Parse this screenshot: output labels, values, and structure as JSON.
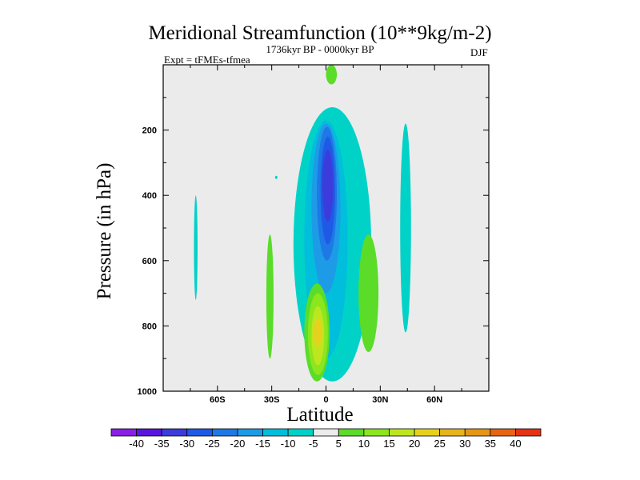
{
  "title": "Meridional Streamfunction (10**9kg/m-2)",
  "subtitle_left": "Expt = tFMEs-tfmea",
  "subtitle_center": "1736kyr BP - 0000kyr BP",
  "subtitle_right": "DJF",
  "chart_data": {
    "type": "contour",
    "title": "Meridional Streamfunction (10**9kg/m-2)",
    "xlabel": "Latitude",
    "ylabel": "Pressure (in hPa)",
    "xlim": [
      -90,
      90
    ],
    "ylim": [
      1000,
      0
    ],
    "x_ticks": [
      -60,
      -30,
      0,
      30,
      60
    ],
    "x_tick_labels": [
      "60S",
      "30S",
      "0",
      "30N",
      "60N"
    ],
    "y_ticks": [
      200,
      400,
      600,
      800,
      1000
    ],
    "y_tick_labels": [
      "200",
      "400",
      "600",
      "800",
      "1000"
    ],
    "colorbar": {
      "levels": [
        -40,
        -35,
        -30,
        -25,
        -20,
        -15,
        -10,
        -5,
        5,
        10,
        15,
        20,
        25,
        30,
        35,
        40
      ],
      "labels": [
        "-40",
        "-35",
        "-30",
        "-25",
        "-20",
        "-15",
        "-10",
        "-5",
        "5",
        "10",
        "15",
        "20",
        "25",
        "30",
        "35",
        "40"
      ],
      "colors": [
        "#8a1ee6",
        "#5a14e0",
        "#3c3cdc",
        "#1e5ae6",
        "#1e78e6",
        "#1e9be6",
        "#00bedc",
        "#00d2c8",
        "#ebebeb",
        "#5adc28",
        "#8ce61e",
        "#bee61e",
        "#e6d21e",
        "#e6b41e",
        "#e69614",
        "#e66414",
        "#e63214"
      ]
    },
    "features": [
      {
        "name": "southern-neg-cell",
        "level": -5,
        "lat": [
          -73,
          -71
        ],
        "p": [
          400,
          720
        ],
        "color": "#00d2c8"
      },
      {
        "name": "small-neg-patch",
        "level": -5,
        "lat": [
          -28,
          -27
        ],
        "p": [
          340,
          350
        ],
        "color": "#00d2c8"
      },
      {
        "name": "main-neg-outer",
        "level": -5,
        "lat": [
          -18,
          25
        ],
        "p": [
          130,
          970
        ],
        "color": "#00d2c8"
      },
      {
        "name": "main-neg-10",
        "level": -10,
        "lat": [
          -12,
          12
        ],
        "p": [
          170,
          900
        ],
        "color": "#00bedc"
      },
      {
        "name": "main-neg-15",
        "level": -15,
        "lat": [
          -8,
          8
        ],
        "p": [
          180,
          700
        ],
        "color": "#1e9be6"
      },
      {
        "name": "main-neg-20",
        "level": -20,
        "lat": [
          -5,
          6
        ],
        "p": [
          190,
          600
        ],
        "color": "#1e78e6"
      },
      {
        "name": "main-neg-25",
        "level": -25,
        "lat": [
          -3,
          5
        ],
        "p": [
          220,
          550
        ],
        "color": "#1e5ae6"
      },
      {
        "name": "main-neg-30",
        "level": -30,
        "lat": [
          -2,
          4
        ],
        "p": [
          260,
          480
        ],
        "color": "#3c3cdc"
      },
      {
        "name": "northern-neg-cell",
        "level": -5,
        "lat": [
          41,
          47
        ],
        "p": [
          180,
          820
        ],
        "color": "#00d2c8"
      },
      {
        "name": "pos-cell-30s",
        "level": 5,
        "lat": [
          -33,
          -29
        ],
        "p": [
          520,
          900
        ],
        "color": "#5adc28"
      },
      {
        "name": "pos-cell-eq-5",
        "level": 5,
        "lat": [
          -12,
          2
        ],
        "p": [
          670,
          970
        ],
        "color": "#5adc28"
      },
      {
        "name": "pos-cell-eq-10",
        "level": 10,
        "lat": [
          -10,
          1
        ],
        "p": [
          700,
          950
        ],
        "color": "#8ce61e"
      },
      {
        "name": "pos-cell-eq-15",
        "level": 15,
        "lat": [
          -8,
          -1
        ],
        "p": [
          740,
          920
        ],
        "color": "#bee61e"
      },
      {
        "name": "pos-cell-eq-20",
        "level": 20,
        "lat": [
          -7,
          -2
        ],
        "p": [
          780,
          860
        ],
        "color": "#e6d21e"
      },
      {
        "name": "pos-cell-25n",
        "level": 5,
        "lat": [
          18,
          29
        ],
        "p": [
          520,
          880
        ],
        "color": "#5adc28"
      },
      {
        "name": "pos-cell-top",
        "level": 5,
        "lat": [
          0,
          6
        ],
        "p": [
          0,
          60
        ],
        "color": "#5adc28"
      }
    ]
  }
}
